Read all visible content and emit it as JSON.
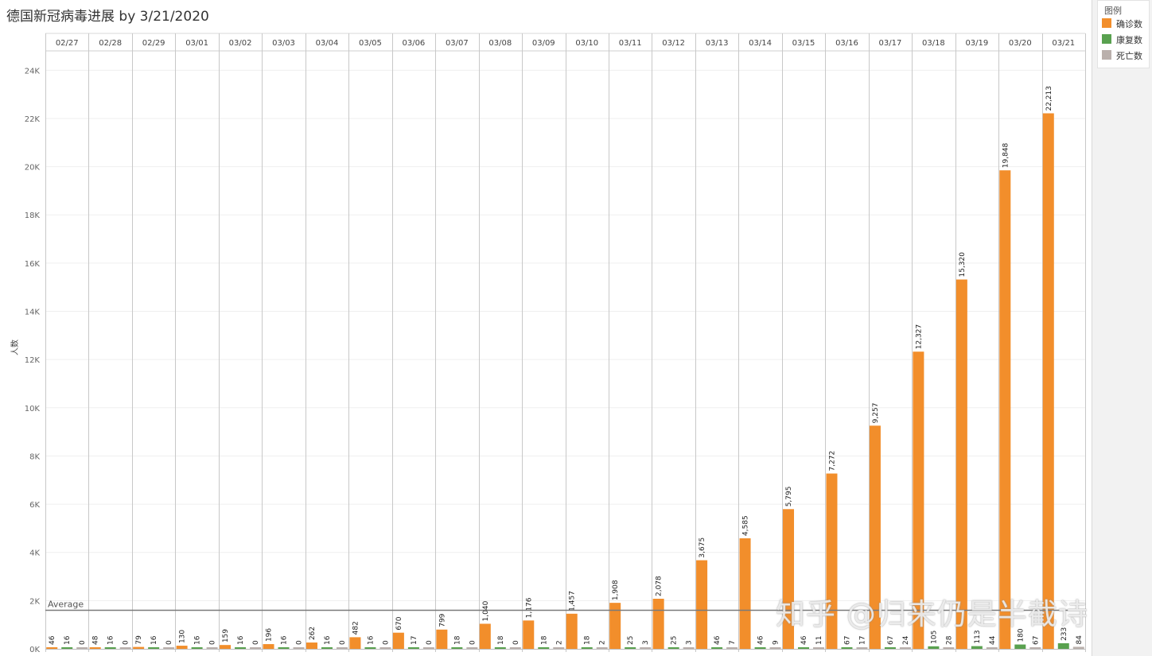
{
  "title": "德国新冠病毒进展 by 3/21/2020",
  "legend": {
    "title": "图例",
    "items": [
      {
        "label": "确诊数",
        "color": "#f28e2b"
      },
      {
        "label": "康复数",
        "color": "#59a14f"
      },
      {
        "label": "死亡数",
        "color": "#bab0ac"
      }
    ]
  },
  "watermark": "知乎 @归来仍是半截诗",
  "chart_data": {
    "type": "bar",
    "title": "德国新冠病毒进展 by 3/21/2020",
    "ylabel": "人数",
    "xlabel": "",
    "ylim": [
      0,
      25000
    ],
    "yticks": [
      0,
      2000,
      4000,
      6000,
      8000,
      10000,
      12000,
      14000,
      16000,
      18000,
      20000,
      22000,
      24000
    ],
    "ytick_labels": [
      "0K",
      "2K",
      "4K",
      "6K",
      "8K",
      "10K",
      "12K",
      "14K",
      "16K",
      "18K",
      "20K",
      "22K",
      "24K"
    ],
    "categories": [
      "02/27",
      "02/28",
      "02/29",
      "03/01",
      "03/02",
      "03/03",
      "03/04",
      "03/05",
      "03/06",
      "03/07",
      "03/08",
      "03/09",
      "03/10",
      "03/11",
      "03/12",
      "03/13",
      "03/14",
      "03/15",
      "03/16",
      "03/17",
      "03/18",
      "03/19",
      "03/20",
      "03/21"
    ],
    "series": [
      {
        "name": "确诊数",
        "color": "#f28e2b",
        "values": [
          46,
          48,
          79,
          130,
          159,
          196,
          262,
          482,
          670,
          799,
          1040,
          1176,
          1457,
          1908,
          2078,
          3675,
          4585,
          5795,
          7272,
          9257,
          12327,
          15320,
          19848,
          22213
        ]
      },
      {
        "name": "康复数",
        "color": "#59a14f",
        "values": [
          16,
          16,
          16,
          16,
          16,
          16,
          16,
          16,
          17,
          18,
          18,
          18,
          18,
          25,
          25,
          46,
          46,
          46,
          67,
          67,
          105,
          113,
          180,
          233
        ]
      },
      {
        "name": "死亡数",
        "color": "#bab0ac",
        "values": [
          0,
          0,
          0,
          0,
          0,
          0,
          0,
          0,
          0,
          0,
          0,
          2,
          2,
          3,
          3,
          7,
          9,
          11,
          17,
          24,
          28,
          44,
          67,
          84
        ]
      }
    ],
    "reference_line": {
      "label": "Average",
      "value": 1600
    },
    "grid": true,
    "legend_position": "top-right"
  }
}
